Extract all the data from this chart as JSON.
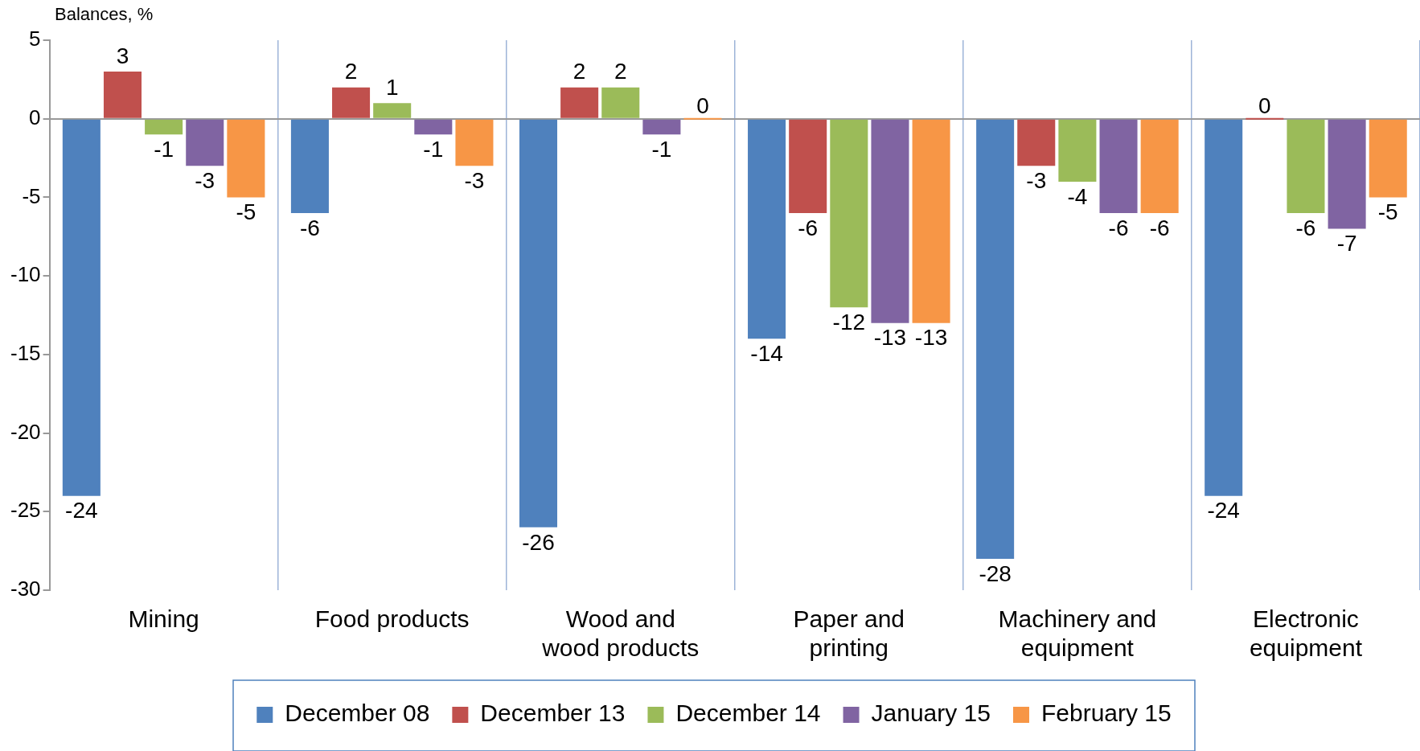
{
  "chart_data": {
    "type": "bar",
    "ylabel": "Balances, %",
    "categories": [
      "Mining",
      "Food products",
      "Wood and wood products",
      "Paper and printing",
      "Machinery and equipment",
      "Electronic equipment"
    ],
    "series": [
      {
        "name": "December 08",
        "color": "#4f81bd",
        "values": [
          -24,
          -6,
          -26,
          -14,
          -28,
          -24
        ]
      },
      {
        "name": "December 13",
        "color": "#c0504d",
        "values": [
          3,
          2,
          2,
          -6,
          -3,
          0
        ]
      },
      {
        "name": "December 14",
        "color": "#9bbb59",
        "values": [
          -1,
          1,
          2,
          -12,
          -4,
          -6
        ]
      },
      {
        "name": "January 15",
        "color": "#8064a2",
        "values": [
          -3,
          -1,
          -1,
          -13,
          -6,
          -7
        ]
      },
      {
        "name": "February 15",
        "color": "#f79646",
        "values": [
          -5,
          -3,
          0,
          -13,
          -6,
          -5
        ]
      }
    ],
    "ylim": [
      -30,
      5
    ],
    "yticks": [
      -30,
      -25,
      -20,
      -15,
      -10,
      -5,
      0,
      5
    ],
    "grid": "x",
    "legend": "bottom",
    "data_labels": true
  }
}
